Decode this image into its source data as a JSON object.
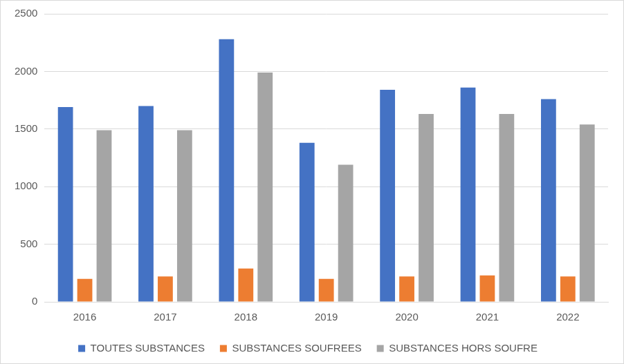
{
  "chart_data": {
    "type": "bar",
    "categories": [
      "2016",
      "2017",
      "2018",
      "2019",
      "2020",
      "2021",
      "2022"
    ],
    "series": [
      {
        "name": "TOUTES SUBSTANCES",
        "color": "#4472c4",
        "values": [
          1690,
          1700,
          2280,
          1380,
          1840,
          1860,
          1760
        ]
      },
      {
        "name": "SUBSTANCES SOUFREES",
        "color": "#ed7d31",
        "values": [
          200,
          220,
          290,
          200,
          220,
          230,
          220
        ]
      },
      {
        "name": "SUBSTANCES HORS SOUFRE",
        "color": "#a5a5a5",
        "values": [
          1490,
          1490,
          1990,
          1190,
          1630,
          1630,
          1540
        ]
      }
    ],
    "ylim": [
      0,
      2500
    ],
    "yticks": [
      0,
      500,
      1000,
      1500,
      2000,
      2500
    ],
    "grid": true,
    "legend": "bottom"
  }
}
